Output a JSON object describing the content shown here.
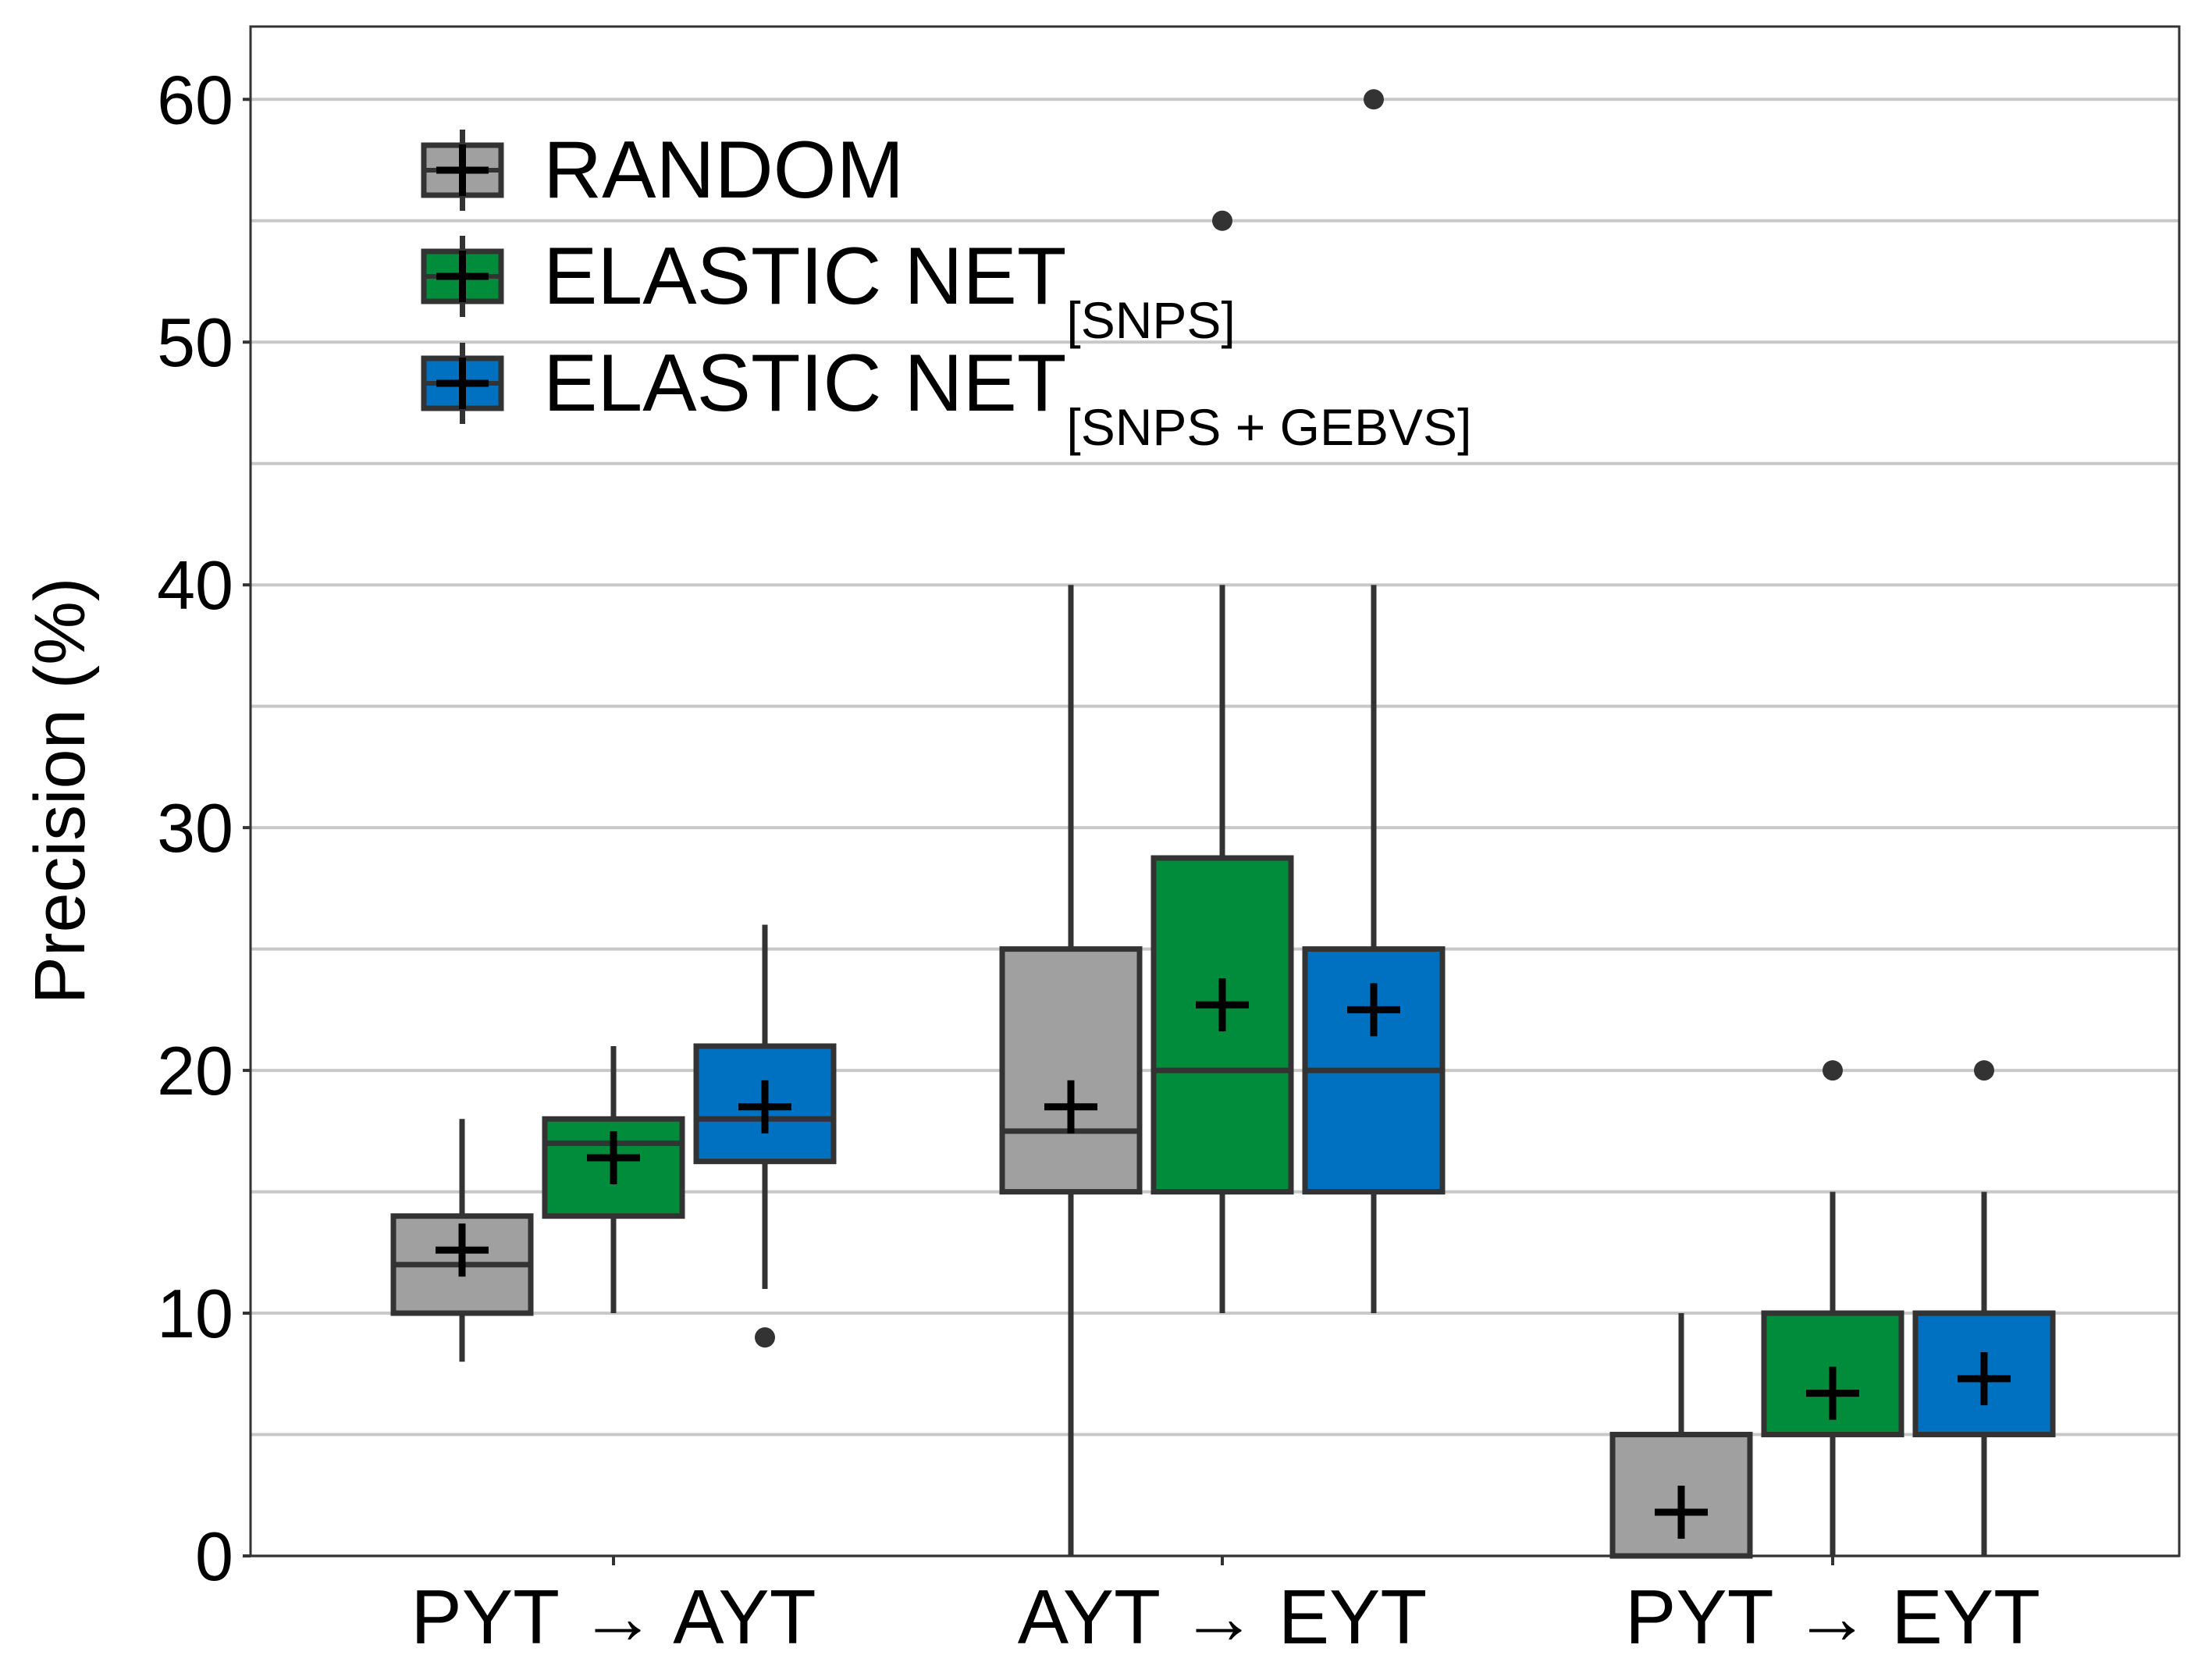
{
  "chart_data": {
    "type": "boxplot",
    "ylabel": "Precision (%)",
    "ylim": [
      0,
      63
    ],
    "y_major_ticks": [
      0,
      10,
      20,
      30,
      40,
      50,
      60
    ],
    "y_minor_gridlines": [
      5,
      15,
      25,
      35,
      45,
      55
    ],
    "grid": "horizontal",
    "legend_position": "top-left",
    "categories": [
      {
        "from": "PYT",
        "arrow": "→",
        "to": "AYT"
      },
      {
        "from": "AYT",
        "arrow": "→",
        "to": "EYT"
      },
      {
        "from": "PYT",
        "arrow": "→",
        "to": "EYT"
      }
    ],
    "series": [
      {
        "name": "RANDOM",
        "label_main": "RANDOM",
        "label_sub": "",
        "color": "#A0A0A0",
        "boxes": [
          {
            "whisker_low": 8,
            "q1": 10,
            "median": 12,
            "q3": 14,
            "whisker_high": 18,
            "mean": 12.6,
            "outliers": []
          },
          {
            "whisker_low": 0,
            "q1": 15,
            "median": 17.5,
            "q3": 25,
            "whisker_high": 40,
            "mean": 18.5,
            "outliers": []
          },
          {
            "whisker_low": 0,
            "q1": 0,
            "median": 0,
            "q3": 5,
            "whisker_high": 10,
            "mean": 1.8,
            "outliers": []
          }
        ]
      },
      {
        "name": "ELASTIC NET[SNPS]",
        "label_main": "ELASTIC NET",
        "label_sub": "[SNPS]",
        "color": "#008C3A",
        "boxes": [
          {
            "whisker_low": 10,
            "q1": 14,
            "median": 17,
            "q3": 18,
            "whisker_high": 21,
            "mean": 16.4,
            "outliers": []
          },
          {
            "whisker_low": 10,
            "q1": 15,
            "median": 20,
            "q3": 28.75,
            "whisker_high": 40,
            "mean": 22.7,
            "outliers": [
              55
            ]
          },
          {
            "whisker_low": 0,
            "q1": 5,
            "median": 5,
            "q3": 10,
            "whisker_high": 15,
            "mean": 6.7,
            "outliers": [
              20
            ]
          }
        ]
      },
      {
        "name": "ELASTIC NET[SNPS + GEBVS]",
        "label_main": "ELASTIC NET",
        "label_sub": "[SNPS + GEBVS]",
        "color": "#0070C0",
        "boxes": [
          {
            "whisker_low": 11,
            "q1": 16.25,
            "median": 18,
            "q3": 21,
            "whisker_high": 26,
            "mean": 18.5,
            "outliers": [
              9
            ]
          },
          {
            "whisker_low": 10,
            "q1": 15,
            "median": 20,
            "q3": 25,
            "whisker_high": 40,
            "mean": 22.5,
            "outliers": [
              60
            ]
          },
          {
            "whisker_low": 0,
            "q1": 5,
            "median": 5,
            "q3": 10,
            "whisker_high": 15,
            "mean": 7.3,
            "outliers": [
              20
            ]
          }
        ]
      }
    ]
  }
}
